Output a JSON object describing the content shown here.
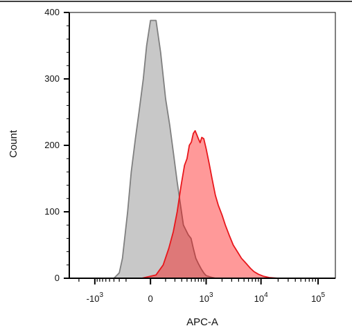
{
  "chart_data": {
    "type": "area",
    "title": "",
    "xlabel": "APC-A",
    "ylabel": "Count",
    "x_scale": "biexponential",
    "x_ticks": [
      {
        "value": -1000,
        "base": "-10",
        "exp": "3"
      },
      {
        "value": 0,
        "base": "0",
        "exp": ""
      },
      {
        "value": 1000,
        "base": "10",
        "exp": "3"
      },
      {
        "value": 10000,
        "base": "10",
        "exp": "4"
      },
      {
        "value": 100000,
        "base": "10",
        "exp": "5"
      }
    ],
    "y_ticks": [
      0,
      100,
      200,
      300,
      400
    ],
    "ylim": [
      0,
      400
    ],
    "grid": false,
    "legend": "none",
    "series": [
      {
        "color": "#7f7f7f",
        "fill": "#c8c8c8",
        "points": [
          [
            -400,
            0
          ],
          [
            -300,
            8
          ],
          [
            -250,
            30
          ],
          [
            -180,
            100
          ],
          [
            -140,
            160
          ],
          [
            -100,
            210
          ],
          [
            -70,
            250
          ],
          [
            -40,
            300
          ],
          [
            -20,
            350
          ],
          [
            0,
            388
          ],
          [
            30,
            388
          ],
          [
            60,
            340
          ],
          [
            100,
            270
          ],
          [
            140,
            230
          ],
          [
            180,
            190
          ],
          [
            230,
            145
          ],
          [
            280,
            110
          ],
          [
            330,
            80
          ],
          [
            380,
            72
          ],
          [
            430,
            65
          ],
          [
            490,
            60
          ],
          [
            550,
            45
          ],
          [
            620,
            30
          ],
          [
            700,
            22
          ],
          [
            800,
            14
          ],
          [
            900,
            8
          ],
          [
            1000,
            4
          ],
          [
            1200,
            2
          ],
          [
            1500,
            0
          ]
        ]
      },
      {
        "color": "#e8161b",
        "fill": "rgba(255,0,0,0.40)",
        "points": [
          [
            -50,
            0
          ],
          [
            30,
            5
          ],
          [
            80,
            20
          ],
          [
            130,
            45
          ],
          [
            180,
            70
          ],
          [
            230,
            100
          ],
          [
            290,
            140
          ],
          [
            350,
            170
          ],
          [
            400,
            180
          ],
          [
            450,
            200
          ],
          [
            500,
            205
          ],
          [
            550,
            218
          ],
          [
            600,
            222
          ],
          [
            650,
            216
          ],
          [
            700,
            210
          ],
          [
            760,
            204
          ],
          [
            820,
            212
          ],
          [
            900,
            210
          ],
          [
            1000,
            195
          ],
          [
            1150,
            172
          ],
          [
            1300,
            150
          ],
          [
            1500,
            125
          ],
          [
            1700,
            110
          ],
          [
            2000,
            95
          ],
          [
            2300,
            80
          ],
          [
            2700,
            65
          ],
          [
            3200,
            50
          ],
          [
            3800,
            40
          ],
          [
            4500,
            30
          ],
          [
            5500,
            22
          ],
          [
            6500,
            15
          ],
          [
            7500,
            10
          ],
          [
            9000,
            6
          ],
          [
            11000,
            3
          ],
          [
            14000,
            1
          ],
          [
            20000,
            0
          ]
        ]
      }
    ]
  }
}
